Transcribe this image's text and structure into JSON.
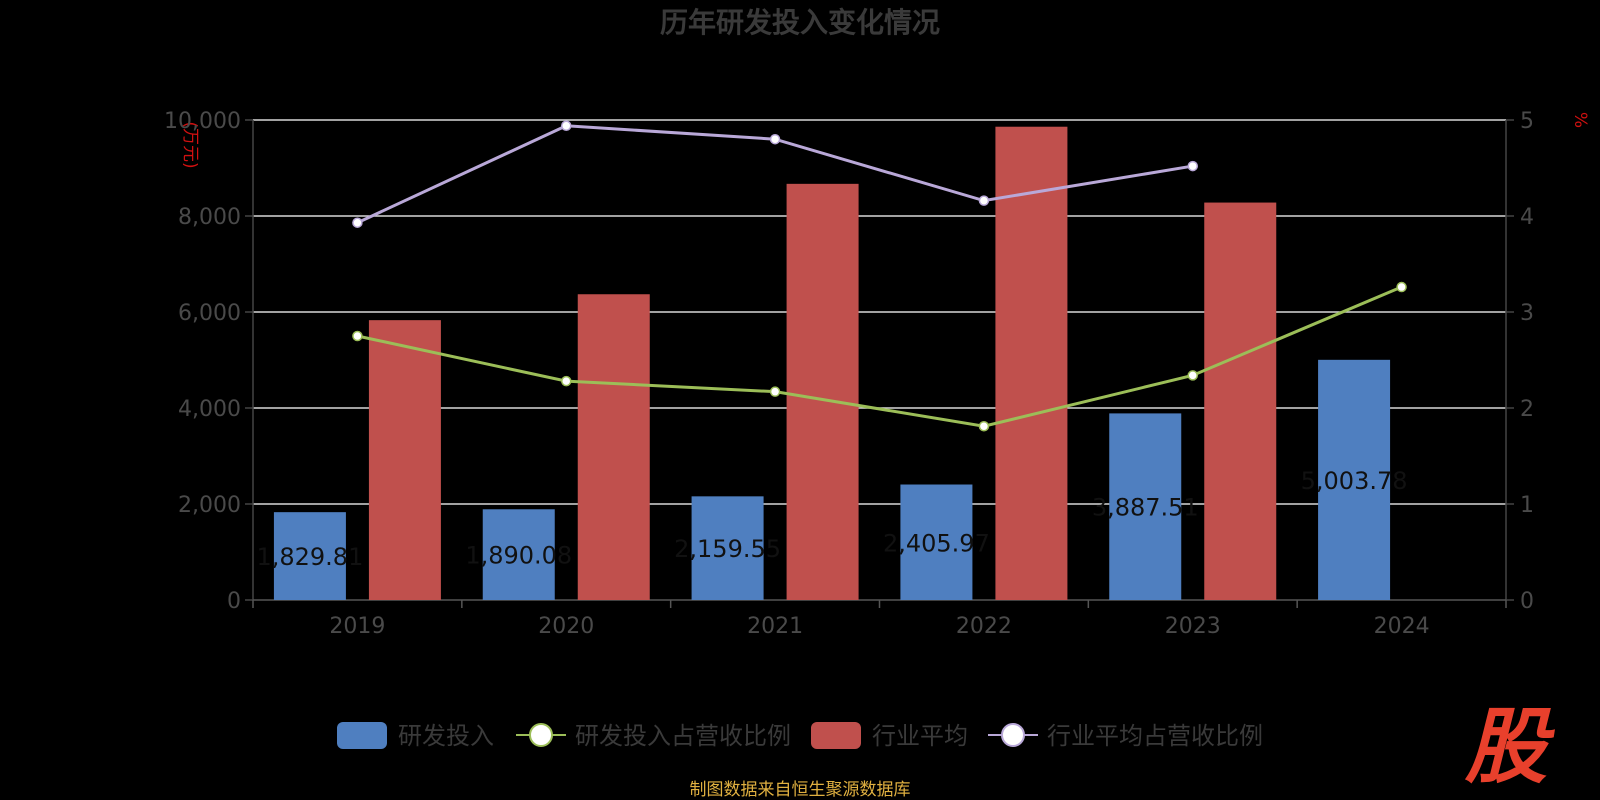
{
  "chart_data": {
    "type": "bar",
    "title": "历年研发投入变化情况",
    "categories": [
      "2019",
      "2020",
      "2021",
      "2022",
      "2023",
      "2024"
    ],
    "y_left": {
      "unit": "(万元)",
      "ylim": [
        0,
        10000
      ],
      "ticks": [
        "0",
        "2,000",
        "4,000",
        "6,000",
        "8,000",
        "10,000"
      ]
    },
    "y_right": {
      "unit": "%",
      "ylim": [
        0,
        5
      ],
      "ticks": [
        "0",
        "1",
        "2",
        "3",
        "4",
        "5"
      ]
    },
    "series": [
      {
        "name": "研发投入",
        "kind": "bar",
        "axis": "left",
        "color": "#4f7fc0",
        "values": [
          1829.81,
          1890.08,
          2159.55,
          2405.97,
          3887.51,
          5003.78
        ],
        "labels": [
          "1,829.81",
          "1,890.08",
          "2,159.55",
          "2,405.97",
          "3,887.51",
          "5,003.78"
        ]
      },
      {
        "name": "研发投入占营收比例",
        "kind": "line",
        "axis": "right",
        "color": "#9cbe58",
        "values": [
          2.75,
          2.28,
          2.17,
          1.81,
          2.34,
          3.26
        ]
      },
      {
        "name": "行业平均",
        "kind": "bar",
        "axis": "left",
        "color": "#c0504d",
        "values": [
          5830,
          6370,
          8670,
          9860,
          8280,
          null
        ]
      },
      {
        "name": "行业平均占营收比例",
        "kind": "line",
        "axis": "right",
        "color": "#b9a8d8",
        "values": [
          3.93,
          4.94,
          4.8,
          4.16,
          4.52,
          null
        ]
      }
    ],
    "grid": true,
    "legend": "bottom"
  },
  "footer": {
    "source": "制图数据来自恒生聚源数据库"
  },
  "watermark": {
    "text": "股"
  }
}
